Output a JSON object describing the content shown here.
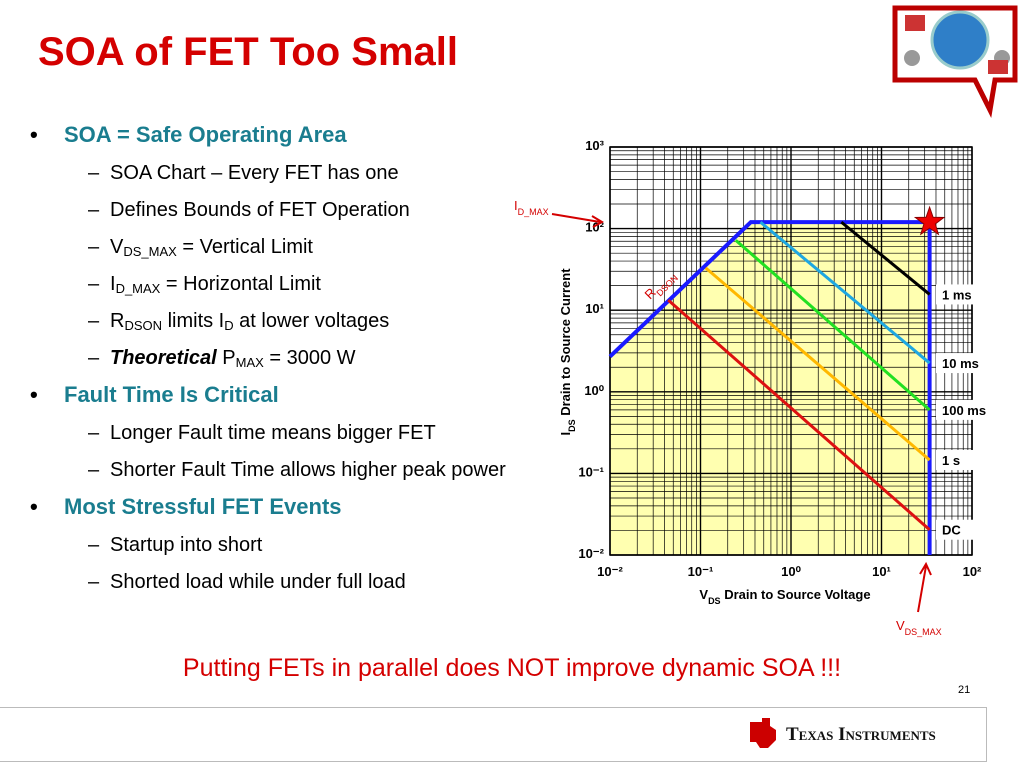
{
  "title": "SOA of FET Too Small",
  "bullets": [
    {
      "level": 1,
      "runs": [
        {
          "text": "SOA = Safe Operating Area"
        }
      ]
    },
    {
      "level": 2,
      "runs": [
        {
          "text": "SOA Chart – Every FET has one"
        }
      ]
    },
    {
      "level": 2,
      "runs": [
        {
          "text": "Defines Bounds of FET Operation"
        }
      ]
    },
    {
      "level": 2,
      "runs": [
        {
          "text": "V"
        },
        {
          "sub": "DS_MAX"
        },
        {
          "text": " = Vertical Limit"
        }
      ]
    },
    {
      "level": 2,
      "runs": [
        {
          "text": "I"
        },
        {
          "sub": "D_MAX"
        },
        {
          "text": " = Horizontal Limit"
        }
      ]
    },
    {
      "level": 2,
      "runs": [
        {
          "text": "R"
        },
        {
          "sub": "DSON"
        },
        {
          "text": " limits I"
        },
        {
          "sub": "D"
        },
        {
          "text": " at lower voltages"
        }
      ]
    },
    {
      "level": 2,
      "runs": [
        {
          "strong": "Theoretical"
        },
        {
          "text": " P"
        },
        {
          "sub": "MAX"
        },
        {
          "text": " = 3000 W"
        }
      ]
    },
    {
      "level": 1,
      "runs": [
        {
          "text": "Fault Time Is Critical"
        }
      ]
    },
    {
      "level": 2,
      "runs": [
        {
          "text": "Longer Fault time means bigger FET"
        }
      ]
    },
    {
      "level": 2,
      "runs": [
        {
          "text": "Shorter Fault Time allows higher peak power"
        }
      ]
    },
    {
      "level": 1,
      "runs": [
        {
          "text": "Most Stressful FET Events"
        }
      ]
    },
    {
      "level": 2,
      "runs": [
        {
          "text": "Startup into short"
        }
      ]
    },
    {
      "level": 2,
      "runs": [
        {
          "text": "Shorted load while under full load"
        }
      ]
    }
  ],
  "chart_data": {
    "type": "line",
    "xscale": "log",
    "yscale": "log",
    "grid": true,
    "fill": "#ffffb0",
    "xlabel": [
      {
        "text": "V"
      },
      {
        "sub": "DS"
      },
      {
        "text": " Drain to Source Voltage"
      }
    ],
    "ylabel": [
      {
        "text": "I"
      },
      {
        "sub": "DS"
      },
      {
        "text": " Drain to Source Current"
      }
    ],
    "xlim": [
      0.01,
      100
    ],
    "ylim": [
      0.01,
      1000
    ],
    "xticks": [
      {
        "value": 0.01,
        "label": "10⁻²"
      },
      {
        "value": 0.1,
        "label": "10⁻¹"
      },
      {
        "value": 1,
        "label": "10⁰"
      },
      {
        "value": 10,
        "label": "10¹"
      },
      {
        "value": 100,
        "label": "10²"
      }
    ],
    "yticks": [
      {
        "value": 0.01,
        "label": "10⁻²"
      },
      {
        "value": 0.1,
        "label": "10⁻¹"
      },
      {
        "value": 1,
        "label": "10⁰"
      },
      {
        "value": 10,
        "label": "10¹"
      },
      {
        "value": 100,
        "label": "10²"
      },
      {
        "value": 1000,
        "label": "10³"
      }
    ],
    "boundary": {
      "color": "#1a1aff",
      "x": [
        0.01,
        0.36,
        34,
        34
      ],
      "y": [
        2.7,
        120,
        120,
        0.01
      ]
    },
    "series": [
      {
        "name": "1 ms",
        "color": "#000000",
        "x": [
          3.6,
          34
        ],
        "y": [
          120,
          15.6
        ]
      },
      {
        "name": "10 ms",
        "color": "#1ea7e1",
        "x": [
          0.46,
          34
        ],
        "y": [
          120,
          2.25
        ]
      },
      {
        "name": "100 ms",
        "color": "#22e022",
        "x": [
          0.245,
          34
        ],
        "y": [
          72,
          0.6
        ]
      },
      {
        "name": "1 s",
        "color": "#ffb800",
        "x": [
          0.114,
          34
        ],
        "y": [
          33,
          0.146
        ]
      },
      {
        "name": "DC",
        "color": "#dd1111",
        "x": [
          0.044,
          34
        ],
        "y": [
          13.3,
          0.0204
        ]
      }
    ],
    "annotations": {
      "idmax": [
        {
          "text": "I"
        },
        {
          "sub": "D_MAX"
        }
      ],
      "rdson": [
        {
          "text": "R"
        },
        {
          "sub": "DSON"
        }
      ],
      "vdsmax": [
        {
          "text": "V"
        },
        {
          "sub": "DS_MAX"
        }
      ]
    }
  },
  "callout": "Putting FETs in parallel does NOT improve dynamic SOA !!!",
  "page_number": "21",
  "brand": "Texas Instruments"
}
